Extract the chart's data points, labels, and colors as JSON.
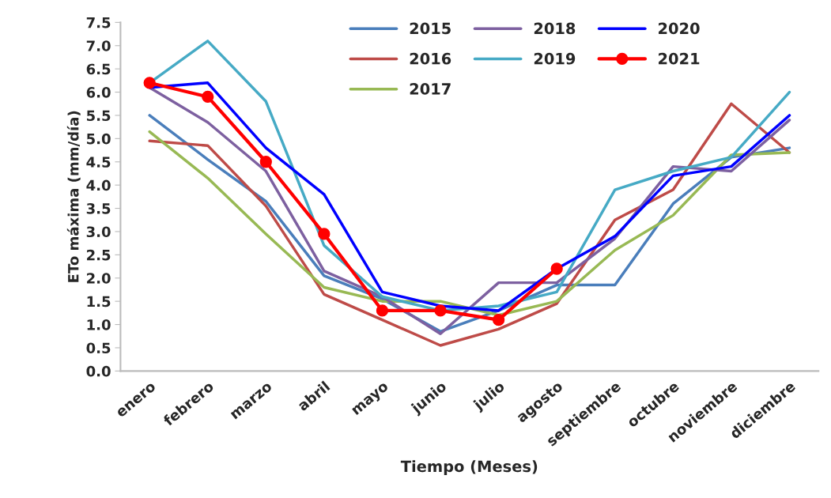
{
  "chart_data": {
    "type": "line",
    "xlabel": "Tiempo (Meses)",
    "ylabel": "ETo máxima (mm/día)",
    "categories": [
      "enero",
      "febrero",
      "marzo",
      "abril",
      "mayo",
      "junio",
      "julio",
      "agosto",
      "septiembre",
      "octubre",
      "noviembre",
      "diciembre"
    ],
    "ylim": [
      0,
      7.5
    ],
    "yticks": [
      {
        "value": 0,
        "label": "0.0"
      },
      {
        "value": 0.5,
        "label": "0.5"
      },
      {
        "value": 1,
        "label": "1.0"
      },
      {
        "value": 1.5,
        "label": "1.5"
      },
      {
        "value": 2,
        "label": "2.0"
      },
      {
        "value": 2.5,
        "label": "2.5"
      },
      {
        "value": 3,
        "label": "3.0"
      },
      {
        "value": 3.5,
        "label": "3.5"
      },
      {
        "value": 4,
        "label": "4.0"
      },
      {
        "value": 4.5,
        "label": "4.5"
      },
      {
        "value": 5,
        "label": "5.0"
      },
      {
        "value": 5.5,
        "label": "5.5"
      },
      {
        "value": 6,
        "label": "6.0"
      },
      {
        "value": 6.5,
        "label": "6.5"
      },
      {
        "value": 7,
        "label": "7.0"
      },
      {
        "value": 7.5,
        "label": "7.5"
      }
    ],
    "grid": false,
    "legend": "top",
    "marker": "none",
    "series": [
      {
        "name": "2015",
        "color": "#4a7ebb",
        "values": [
          5.5,
          4.55,
          3.65,
          2.05,
          1.55,
          0.85,
          1.3,
          1.85,
          1.85,
          3.6,
          4.6,
          4.8
        ]
      },
      {
        "name": "2016",
        "color": "#be4b48",
        "values": [
          4.95,
          4.85,
          3.55,
          1.65,
          1.1,
          0.55,
          0.9,
          1.45,
          3.25,
          3.9,
          5.75,
          4.7
        ]
      },
      {
        "name": "2017",
        "color": "#98b954",
        "values": [
          5.15,
          4.15,
          2.95,
          1.8,
          1.5,
          1.5,
          1.2,
          1.5,
          2.6,
          3.35,
          4.65,
          4.7
        ]
      },
      {
        "name": "2018",
        "color": "#7d60a0",
        "values": [
          6.1,
          5.35,
          4.3,
          2.15,
          1.6,
          0.8,
          1.9,
          1.9,
          2.85,
          4.4,
          4.3,
          5.4
        ]
      },
      {
        "name": "2019",
        "color": "#46aac5",
        "values": [
          6.2,
          7.1,
          5.8,
          2.7,
          1.6,
          1.3,
          1.4,
          1.7,
          3.9,
          4.3,
          4.6,
          6.0
        ]
      },
      {
        "name": "2020",
        "color": "#0000ff",
        "values": [
          6.1,
          6.2,
          4.8,
          3.8,
          1.7,
          1.4,
          1.3,
          2.2,
          2.9,
          4.2,
          4.4,
          5.5
        ]
      },
      {
        "name": "2021",
        "color": "#ff0000",
        "marker": "circle",
        "values": [
          6.2,
          5.9,
          4.5,
          2.95,
          1.3,
          1.3,
          1.1,
          2.2,
          null,
          null,
          null,
          null
        ]
      }
    ]
  }
}
